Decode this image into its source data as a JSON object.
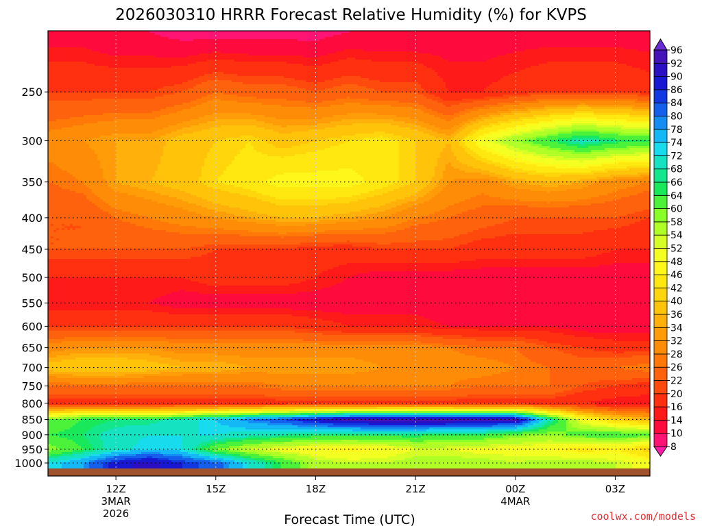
{
  "chart_data": {
    "type": "heatmap",
    "title": "2026030310 HRRR Forecast Relative Humidity (%) for KVPS",
    "xlabel": "Forecast Time (UTC)",
    "ylabel": "",
    "x_hours": [
      10,
      11,
      12,
      13,
      14,
      15,
      16,
      17,
      18,
      19,
      20,
      21,
      22,
      23,
      24,
      25,
      26,
      27,
      28
    ],
    "y_levels": [
      200,
      250,
      300,
      350,
      400,
      450,
      500,
      550,
      600,
      650,
      700,
      750,
      800,
      850,
      900,
      950,
      1000
    ],
    "y_tick_labels": [
      "250",
      "300",
      "350",
      "400",
      "450",
      "500",
      "550",
      "600",
      "650",
      "700",
      "750",
      "800",
      "850",
      "900",
      "950",
      "1000"
    ],
    "x_ticks": [
      {
        "hour": 12,
        "lines": [
          "12Z",
          "3MAR",
          "2026"
        ]
      },
      {
        "hour": 15,
        "lines": [
          "15Z"
        ]
      },
      {
        "hour": 18,
        "lines": [
          "18Z"
        ]
      },
      {
        "hour": 21,
        "lines": [
          "21Z"
        ]
      },
      {
        "hour": 24,
        "lines": [
          "00Z",
          "4MAR"
        ]
      },
      {
        "hour": 27,
        "lines": [
          "03Z"
        ]
      }
    ],
    "rh_percent": [
      [
        12,
        12,
        10,
        10,
        8,
        8,
        8,
        8,
        8,
        10,
        10,
        10,
        12,
        12,
        12,
        12,
        12,
        12,
        12
      ],
      [
        20,
        20,
        20,
        20,
        22,
        26,
        24,
        24,
        22,
        24,
        22,
        22,
        16,
        16,
        18,
        20,
        20,
        20,
        18
      ],
      [
        30,
        32,
        34,
        34,
        38,
        40,
        42,
        38,
        40,
        42,
        44,
        40,
        36,
        50,
        58,
        64,
        70,
        66,
        64
      ],
      [
        26,
        28,
        34,
        36,
        38,
        42,
        44,
        48,
        48,
        48,
        44,
        40,
        32,
        30,
        34,
        36,
        34,
        30,
        28
      ],
      [
        22,
        22,
        26,
        28,
        30,
        32,
        34,
        36,
        36,
        34,
        32,
        28,
        26,
        24,
        22,
        22,
        22,
        22,
        20
      ],
      [
        22,
        22,
        22,
        22,
        22,
        20,
        20,
        20,
        18,
        18,
        20,
        20,
        20,
        18,
        18,
        18,
        18,
        16,
        16
      ],
      [
        16,
        16,
        16,
        16,
        16,
        18,
        18,
        18,
        16,
        14,
        12,
        12,
        12,
        12,
        12,
        12,
        12,
        12,
        12
      ],
      [
        14,
        14,
        14,
        14,
        12,
        12,
        12,
        12,
        12,
        12,
        12,
        12,
        10,
        10,
        10,
        10,
        10,
        10,
        10
      ],
      [
        20,
        20,
        20,
        20,
        20,
        20,
        20,
        20,
        18,
        16,
        16,
        16,
        14,
        14,
        14,
        14,
        12,
        12,
        12
      ],
      [
        30,
        32,
        32,
        32,
        30,
        30,
        30,
        30,
        30,
        30,
        30,
        30,
        28,
        26,
        26,
        22,
        20,
        18,
        18
      ],
      [
        38,
        40,
        40,
        38,
        36,
        36,
        34,
        34,
        34,
        34,
        32,
        32,
        30,
        30,
        28,
        26,
        24,
        26,
        28
      ],
      [
        26,
        26,
        26,
        26,
        26,
        26,
        26,
        28,
        28,
        28,
        28,
        28,
        28,
        26,
        26,
        26,
        22,
        20,
        18
      ],
      [
        18,
        18,
        18,
        18,
        18,
        18,
        18,
        18,
        18,
        18,
        18,
        18,
        18,
        18,
        18,
        18,
        16,
        14,
        14
      ],
      [
        60,
        64,
        66,
        66,
        70,
        74,
        80,
        84,
        90,
        94,
        96,
        96,
        96,
        94,
        94,
        70,
        50,
        40,
        36
      ],
      [
        64,
        66,
        70,
        72,
        72,
        72,
        70,
        68,
        66,
        66,
        66,
        66,
        64,
        64,
        60,
        58,
        62,
        64,
        62
      ],
      [
        58,
        64,
        70,
        74,
        72,
        60,
        54,
        50,
        48,
        46,
        48,
        52,
        52,
        50,
        50,
        48,
        44,
        46,
        40
      ],
      [
        72,
        78,
        88,
        92,
        86,
        82,
        72,
        64,
        56,
        54,
        54,
        56,
        56,
        56,
        54,
        56,
        56,
        54,
        50
      ]
    ],
    "colorbar": {
      "levels": [
        8,
        10,
        14,
        16,
        20,
        22,
        26,
        28,
        32,
        34,
        36,
        40,
        42,
        46,
        48,
        52,
        54,
        58,
        60,
        64,
        66,
        68,
        72,
        74,
        78,
        80,
        84,
        86,
        90,
        92,
        96
      ],
      "colors": [
        "#ff1ca6",
        "#ff1473",
        "#ff0a3c",
        "#ff1a1a",
        "#ff3010",
        "#ff4a0e",
        "#ff620c",
        "#ff7808",
        "#ff8c06",
        "#ff9c08",
        "#ffb00a",
        "#ffc40a",
        "#ffd60c",
        "#ffe810",
        "#fff61a",
        "#f4ff22",
        "#d6ff26",
        "#b0ff26",
        "#88ff26",
        "#4cf23a",
        "#18e85a",
        "#14e68c",
        "#14e2c0",
        "#18dcee",
        "#14b8f4",
        "#148cf2",
        "#1460ec",
        "#1238e2",
        "#1818d2",
        "#2a10c2",
        "#4414b8",
        "#6a2cd6"
      ]
    },
    "legend": "right",
    "grid": true,
    "ground_color": "#a0522d"
  },
  "credit": "coolwx.com/models"
}
